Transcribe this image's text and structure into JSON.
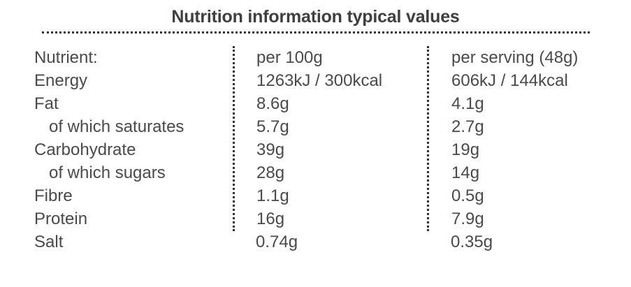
{
  "title": "Nutrition information typical values",
  "header": {
    "nutrient": "Nutrient:",
    "per_100g": "per 100g",
    "per_serving": "per serving (48g)"
  },
  "rows": [
    {
      "name": "Energy",
      "per_100g": "1263kJ / 300kcal",
      "per_serving": "606kJ / 144kcal"
    },
    {
      "name": "Fat",
      "per_100g": "8.6g",
      "per_serving": "4.1g"
    },
    {
      "name": "of which saturates",
      "per_100g": "5.7g",
      "per_serving": "2.7g"
    },
    {
      "name": "Carbohydrate",
      "per_100g": "39g",
      "per_serving": "19g"
    },
    {
      "name": "of which sugars",
      "per_100g": "28g",
      "per_serving": "14g"
    },
    {
      "name": "Fibre",
      "per_100g": "1.1g",
      "per_serving": "0.5g"
    },
    {
      "name": "Protein",
      "per_100g": "16g",
      "per_serving": "7.9g"
    },
    {
      "name": "Salt",
      "per_100g": "0.74g",
      "per_serving": "0.35g"
    }
  ]
}
